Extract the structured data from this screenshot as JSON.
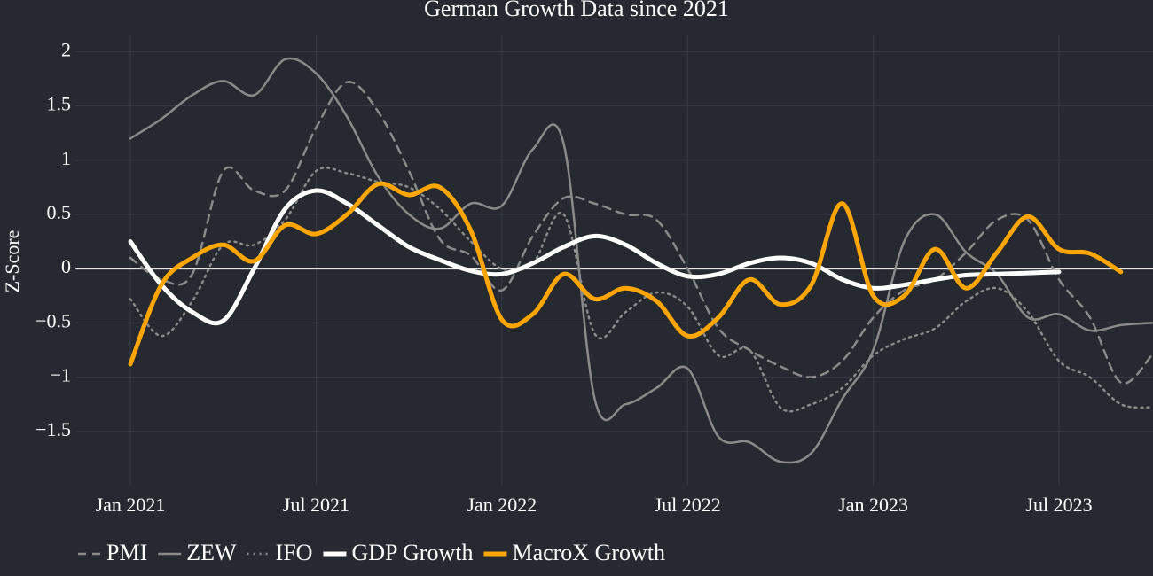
{
  "chart_data": {
    "type": "line",
    "title": "German Growth Data since 2021",
    "y_label": "Z-Score",
    "x": [
      "2021-01",
      "2021-02",
      "2021-03",
      "2021-04",
      "2021-05",
      "2021-06",
      "2021-07",
      "2021-08",
      "2021-09",
      "2021-10",
      "2021-11",
      "2021-12",
      "2022-01",
      "2022-02",
      "2022-03",
      "2022-04",
      "2022-05",
      "2022-06",
      "2022-07",
      "2022-08",
      "2022-09",
      "2022-10",
      "2022-11",
      "2022-12",
      "2023-01",
      "2023-02",
      "2023-03",
      "2023-04",
      "2023-05",
      "2023-06",
      "2023-07",
      "2023-08",
      "2023-09",
      "2023-10"
    ],
    "xlim": [
      "2020-11",
      "2023-10"
    ],
    "xticks": [
      {
        "value": "2021-01",
        "label": "Jan 2021"
      },
      {
        "value": "2021-07",
        "label": "Jul 2021"
      },
      {
        "value": "2022-01",
        "label": "Jan 2022"
      },
      {
        "value": "2022-07",
        "label": "Jul 2022"
      },
      {
        "value": "2023-01",
        "label": "Jan 2023"
      },
      {
        "value": "2023-07",
        "label": "Jul 2023"
      }
    ],
    "ylim": [
      -2,
      2.15
    ],
    "yticks": [
      {
        "value": -1.5,
        "label": "−1.5"
      },
      {
        "value": -1,
        "label": "−1"
      },
      {
        "value": -0.5,
        "label": "−0.5"
      },
      0,
      0.5,
      1,
      1.5,
      2
    ],
    "grid": true,
    "legend": "bottom",
    "series": [
      {
        "name": "PMI",
        "color": "#8a8a8a",
        "dash": "dash",
        "width": 2.5,
        "values": [
          0.1,
          -0.1,
          -0.05,
          0.9,
          0.72,
          0.72,
          1.3,
          1.72,
          1.45,
          0.9,
          0.27,
          0.12,
          -0.2,
          0.3,
          0.65,
          0.6,
          0.5,
          0.45,
          0.0,
          -0.55,
          -0.75,
          -0.9,
          -1.0,
          -0.85,
          -0.45,
          -0.2,
          -0.1,
          0.15,
          0.45,
          0.45,
          -0.1,
          -0.45,
          -1.05,
          -0.8
        ]
      },
      {
        "name": "ZEW",
        "color": "#8a8a8a",
        "dash": "solid",
        "width": 2.5,
        "values": [
          1.2,
          1.38,
          1.6,
          1.73,
          1.6,
          1.93,
          1.8,
          1.4,
          0.85,
          0.5,
          0.37,
          0.6,
          0.58,
          1.1,
          1.15,
          -1.2,
          -1.25,
          -1.1,
          -0.92,
          -1.55,
          -1.6,
          -1.78,
          -1.7,
          -1.2,
          -0.75,
          0.25,
          0.5,
          0.15,
          -0.05,
          -0.45,
          -0.42,
          -0.57,
          -0.52,
          -0.5
        ]
      },
      {
        "name": "IFO",
        "color": "#8a8a8a",
        "dash": "dot",
        "width": 2.5,
        "values": [
          -0.28,
          -0.62,
          -0.3,
          0.22,
          0.22,
          0.45,
          0.9,
          0.88,
          0.8,
          0.75,
          0.55,
          0.25,
          0.0,
          0.05,
          0.5,
          -0.6,
          -0.4,
          -0.22,
          -0.35,
          -0.8,
          -0.75,
          -1.28,
          -1.25,
          -1.1,
          -0.8,
          -0.65,
          -0.55,
          -0.3,
          -0.18,
          -0.4,
          -0.85,
          -1.0,
          -1.25,
          -1.28
        ]
      },
      {
        "name": "GDP Growth",
        "color": "#ffffff",
        "dash": "solid",
        "width": 5,
        "values": [
          0.25,
          -0.15,
          -0.4,
          -0.48,
          0.0,
          0.55,
          0.72,
          0.6,
          0.4,
          0.2,
          0.08,
          -0.02,
          -0.05,
          0.05,
          0.2,
          0.3,
          0.22,
          0.05,
          -0.07,
          -0.05,
          0.05,
          0.1,
          0.05,
          -0.1,
          -0.18,
          -0.15,
          -0.1,
          -0.06,
          -0.05,
          -0.04,
          -0.03,
          null,
          null,
          null
        ]
      },
      {
        "name": "MacroX Growth",
        "color": "#ffa500",
        "dash": "solid",
        "width": 5,
        "values": [
          -0.88,
          -0.15,
          0.1,
          0.22,
          0.07,
          0.4,
          0.32,
          0.5,
          0.78,
          0.68,
          0.75,
          0.35,
          -0.47,
          -0.42,
          -0.05,
          -0.28,
          -0.18,
          -0.3,
          -0.62,
          -0.45,
          -0.1,
          -0.33,
          -0.15,
          0.6,
          -0.25,
          -0.25,
          0.18,
          -0.18,
          0.15,
          0.48,
          0.18,
          0.14,
          -0.03,
          null
        ]
      }
    ]
  }
}
